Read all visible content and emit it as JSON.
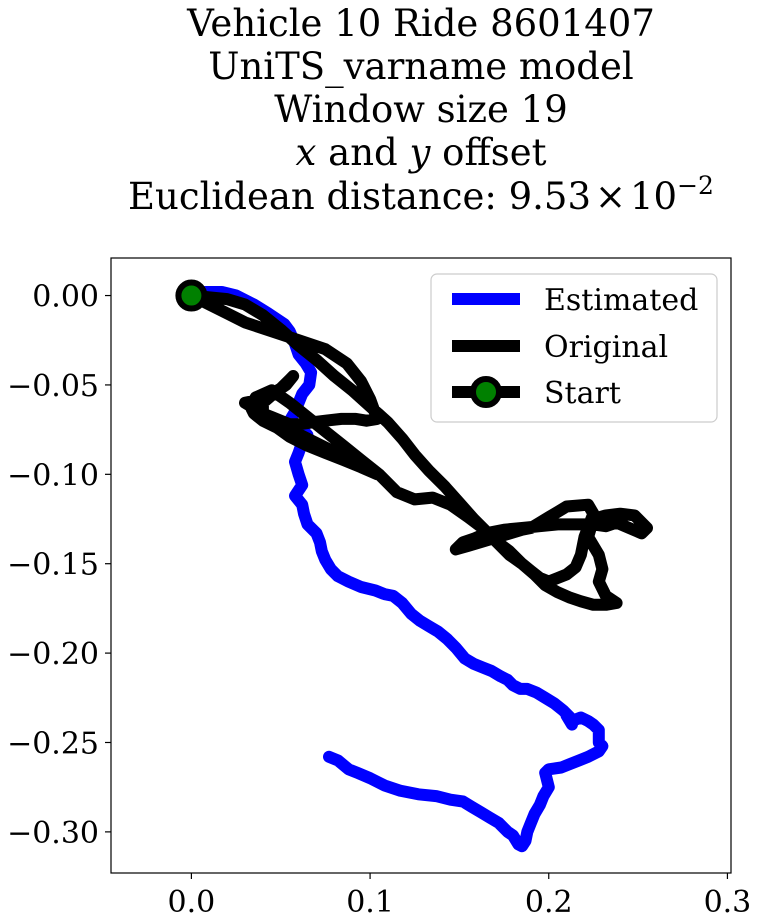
{
  "chart_data": {
    "type": "line",
    "title_lines": [
      "Vehicle 10 Ride 8601407",
      "UniTS_varname model",
      "Window size 19"
    ],
    "title_offset": {
      "x": "x",
      "and": " and ",
      "y": "y",
      "rest": " offset"
    },
    "title_distance": {
      "prefix": "Euclidean distance: ",
      "mantissa": "9.53",
      "times": "×",
      "base": "10",
      "exponent": "−2"
    },
    "xlim": [
      -0.045,
      0.302
    ],
    "ylim": [
      -0.323,
      0.021
    ],
    "x_ticks": [
      {
        "value": 0.0,
        "label": "0.0"
      },
      {
        "value": 0.1,
        "label": "0.1"
      },
      {
        "value": 0.2,
        "label": "0.2"
      },
      {
        "value": 0.3,
        "label": "0.3"
      }
    ],
    "y_ticks": [
      {
        "value": 0.0,
        "label": "0.00"
      },
      {
        "value": -0.05,
        "label": "−0.05"
      },
      {
        "value": -0.1,
        "label": "−0.10"
      },
      {
        "value": -0.15,
        "label": "−0.15"
      },
      {
        "value": -0.2,
        "label": "−0.20"
      },
      {
        "value": -0.25,
        "label": "−0.25"
      },
      {
        "value": -0.3,
        "label": "−0.30"
      }
    ],
    "grid": false,
    "legend_position": "top-right",
    "series": [
      {
        "name": "Estimated",
        "color": "#0000ff",
        "x": [
          0.0,
          0.008,
          0.017,
          0.025,
          0.035,
          0.043,
          0.052,
          0.055,
          0.058,
          0.06,
          0.064,
          0.067,
          0.066,
          0.062,
          0.06,
          0.058,
          0.055,
          0.058,
          0.063,
          0.065,
          0.062,
          0.06,
          0.058,
          0.06,
          0.062,
          0.058,
          0.062,
          0.063,
          0.065,
          0.07,
          0.072,
          0.073,
          0.075,
          0.078,
          0.082,
          0.088,
          0.095,
          0.103,
          0.108,
          0.113,
          0.118,
          0.123,
          0.128,
          0.133,
          0.138,
          0.143,
          0.148,
          0.153,
          0.158,
          0.163,
          0.168,
          0.173,
          0.177,
          0.18,
          0.184,
          0.188,
          0.193,
          0.198,
          0.203,
          0.208,
          0.212,
          0.213,
          0.21,
          0.213,
          0.218,
          0.222,
          0.225,
          0.228,
          0.228,
          0.23,
          0.228,
          0.222,
          0.217,
          0.212,
          0.207,
          0.2,
          0.198,
          0.2,
          0.197,
          0.195,
          0.192,
          0.19,
          0.188,
          0.187,
          0.185,
          0.183,
          0.18,
          0.177,
          0.172,
          0.167,
          0.162,
          0.157,
          0.152,
          0.145,
          0.137,
          0.127,
          0.117,
          0.108,
          0.1,
          0.093,
          0.088,
          0.082,
          0.077
        ],
        "y": [
          0.0,
          0.002,
          0.002,
          0.0,
          -0.005,
          -0.01,
          -0.016,
          -0.02,
          -0.027,
          -0.033,
          -0.038,
          -0.043,
          -0.05,
          -0.055,
          -0.06,
          -0.065,
          -0.07,
          -0.073,
          -0.076,
          -0.078,
          -0.082,
          -0.088,
          -0.093,
          -0.1,
          -0.106,
          -0.112,
          -0.117,
          -0.122,
          -0.128,
          -0.133,
          -0.138,
          -0.143,
          -0.148,
          -0.153,
          -0.157,
          -0.16,
          -0.163,
          -0.165,
          -0.167,
          -0.168,
          -0.172,
          -0.178,
          -0.182,
          -0.185,
          -0.188,
          -0.192,
          -0.197,
          -0.203,
          -0.206,
          -0.208,
          -0.21,
          -0.213,
          -0.215,
          -0.218,
          -0.22,
          -0.22,
          -0.222,
          -0.225,
          -0.228,
          -0.232,
          -0.236,
          -0.24,
          -0.235,
          -0.238,
          -0.236,
          -0.238,
          -0.24,
          -0.243,
          -0.25,
          -0.252,
          -0.255,
          -0.258,
          -0.26,
          -0.262,
          -0.264,
          -0.265,
          -0.267,
          -0.275,
          -0.28,
          -0.285,
          -0.29,
          -0.295,
          -0.3,
          -0.305,
          -0.308,
          -0.307,
          -0.302,
          -0.3,
          -0.295,
          -0.292,
          -0.289,
          -0.286,
          -0.283,
          -0.282,
          -0.28,
          -0.279,
          -0.277,
          -0.274,
          -0.27,
          -0.267,
          -0.265,
          -0.26,
          -0.258
        ]
      },
      {
        "name": "Original",
        "color": "#000000",
        "x": [
          0.0,
          0.01,
          0.02,
          0.03,
          0.045,
          0.06,
          0.075,
          0.087,
          0.095,
          0.1,
          0.104,
          0.098,
          0.092,
          0.084,
          0.075,
          0.067,
          0.06,
          0.055,
          0.05,
          0.045,
          0.04,
          0.035,
          0.03,
          0.04,
          0.05,
          0.055,
          0.057,
          0.053,
          0.047,
          0.04,
          0.04,
          0.045,
          0.055,
          0.065,
          0.075,
          0.085,
          0.095,
          0.105,
          0.104,
          0.095,
          0.085,
          0.075,
          0.065,
          0.055,
          0.048,
          0.04,
          0.035,
          0.033,
          0.036,
          0.045,
          0.055,
          0.065,
          0.075,
          0.085,
          0.095,
          0.105,
          0.115,
          0.125,
          0.135,
          0.145,
          0.155,
          0.163,
          0.17,
          0.178,
          0.185,
          0.192,
          0.198,
          0.205,
          0.212,
          0.218,
          0.225,
          0.232,
          0.238,
          0.232,
          0.228,
          0.23,
          0.228,
          0.222,
          0.225,
          0.232,
          0.24,
          0.248,
          0.255,
          0.252,
          0.245,
          0.238,
          0.232,
          0.225,
          0.215,
          0.205,
          0.195,
          0.185,
          0.175,
          0.165,
          0.158,
          0.152,
          0.148,
          0.155,
          0.165,
          0.175,
          0.185,
          0.19,
          0.195,
          0.2,
          0.205,
          0.21,
          0.222,
          0.225,
          0.22,
          0.218,
          0.215,
          0.21,
          0.205,
          0.2,
          0.195,
          0.19,
          0.185,
          0.178,
          0.172,
          0.165,
          0.158,
          0.15,
          0.142,
          0.133,
          0.125,
          0.118,
          0.11,
          0.1,
          0.09,
          0.08,
          0.07,
          0.06,
          0.05,
          0.04,
          0.03,
          0.02,
          0.01,
          0.0
        ],
        "y": [
          0.0,
          -0.005,
          -0.01,
          -0.015,
          -0.02,
          -0.025,
          -0.03,
          -0.038,
          -0.048,
          -0.058,
          -0.069,
          -0.07,
          -0.069,
          -0.069,
          -0.07,
          -0.071,
          -0.072,
          -0.072,
          -0.07,
          -0.068,
          -0.066,
          -0.063,
          -0.06,
          -0.058,
          -0.052,
          -0.047,
          -0.045,
          -0.05,
          -0.054,
          -0.06,
          -0.066,
          -0.07,
          -0.075,
          -0.08,
          -0.085,
          -0.09,
          -0.095,
          -0.1,
          -0.1,
          -0.096,
          -0.092,
          -0.088,
          -0.084,
          -0.079,
          -0.074,
          -0.07,
          -0.066,
          -0.062,
          -0.057,
          -0.053,
          -0.06,
          -0.068,
          -0.076,
          -0.084,
          -0.092,
          -0.1,
          -0.11,
          -0.114,
          -0.113,
          -0.117,
          -0.124,
          -0.13,
          -0.137,
          -0.143,
          -0.15,
          -0.156,
          -0.162,
          -0.166,
          -0.169,
          -0.171,
          -0.173,
          -0.173,
          -0.172,
          -0.168,
          -0.16,
          -0.153,
          -0.145,
          -0.135,
          -0.125,
          -0.123,
          -0.122,
          -0.123,
          -0.13,
          -0.133,
          -0.13,
          -0.127,
          -0.129,
          -0.128,
          -0.128,
          -0.128,
          -0.129,
          -0.13,
          -0.131,
          -0.133,
          -0.136,
          -0.138,
          -0.142,
          -0.14,
          -0.137,
          -0.134,
          -0.131,
          -0.13,
          -0.127,
          -0.124,
          -0.121,
          -0.118,
          -0.117,
          -0.122,
          -0.135,
          -0.145,
          -0.152,
          -0.156,
          -0.158,
          -0.16,
          -0.158,
          -0.154,
          -0.15,
          -0.145,
          -0.139,
          -0.132,
          -0.125,
          -0.116,
          -0.107,
          -0.098,
          -0.089,
          -0.08,
          -0.071,
          -0.062,
          -0.053,
          -0.045,
          -0.036,
          -0.028,
          -0.019,
          -0.011,
          -0.005,
          -0.002,
          -0.001,
          0.0
        ]
      }
    ],
    "start": {
      "name": "Start",
      "x": 0.0,
      "y": 0.0,
      "marker_fill": "#008000",
      "marker_edge": "#000000"
    }
  }
}
